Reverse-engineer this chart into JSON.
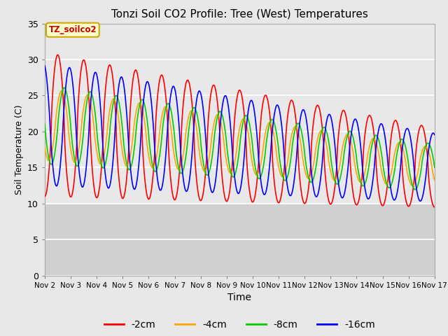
{
  "title": "Tonzi Soil CO2 Profile: Tree (West) Temperatures",
  "ylabel": "Soil Temperature (C)",
  "xlabel": "Time",
  "annotation": "TZ_soilco2",
  "legend_labels": [
    "-2cm",
    "-4cm",
    "-8cm",
    "-16cm"
  ],
  "legend_colors": [
    "#ff0000",
    "#ffa500",
    "#00cc00",
    "#0000ff"
  ],
  "ylim": [
    0,
    35
  ],
  "plot_area_color": "#d8d8d8",
  "upper_band_color": "#e8e8e8",
  "lower_band_color": "#d0d0d0",
  "grid_color": "#ffffff",
  "xtick_labels": [
    "Nov 2",
    "Nov 3",
    "Nov 4",
    "Nov 5",
    "Nov 6",
    "Nov 7",
    "Nov 8",
    "Nov 9",
    "Nov 10",
    "Nov 11",
    "Nov 12",
    "Nov 13",
    "Nov 14",
    "Nov 15",
    "Nov 16",
    "Nov 17"
  ],
  "n_days": 15,
  "pts_per_day": 144
}
